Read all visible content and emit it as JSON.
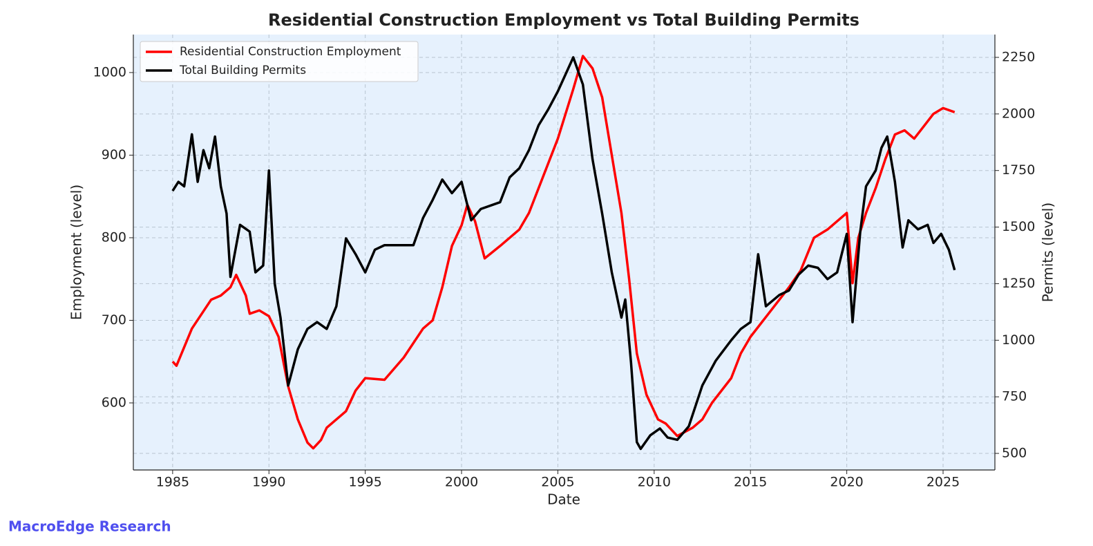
{
  "chart_data": {
    "type": "line",
    "title": "Residential Construction Employment vs Total Building Permits",
    "xlabel": "Date",
    "ylabel": "Employment (level)",
    "y2label": "Permits (level)",
    "watermark": "MacroEdge Research",
    "grid": true,
    "legend": "upper left",
    "xlim": [
      1982.96,
      2027.69
    ],
    "xticks": [
      1985,
      1990,
      1995,
      2000,
      2005,
      2010,
      2015,
      2020,
      2025
    ],
    "ylim": [
      518.8,
      1046
    ],
    "yticks": [
      600,
      700,
      800,
      900,
      1000
    ],
    "y2lim": [
      426.7,
      2350.8
    ],
    "y2ticks": [
      500,
      750,
      1000,
      1250,
      1500,
      1750,
      2000,
      2250
    ],
    "series": [
      {
        "name": "Residential Construction Employment",
        "color": "#ff0000",
        "axis": "y",
        "x": [
          1985,
          1985.2,
          1986,
          1987,
          1987.5,
          1988,
          1988.3,
          1988.8,
          1989,
          1989.5,
          1990,
          1990.5,
          1991,
          1991.5,
          1992,
          1992.3,
          1992.7,
          1993,
          1994,
          1994.5,
          1995,
          1996,
          1997,
          1998,
          1998.5,
          1999,
          1999.5,
          2000,
          2000.3,
          2000.7,
          2001.2,
          2002,
          2003,
          2003.5,
          2004,
          2005,
          2005.8,
          2006.3,
          2006.8,
          2007.3,
          2007.8,
          2008.3,
          2008.7,
          2009.1,
          2009.6,
          2010.2,
          2010.6,
          2011.2,
          2012,
          2012.5,
          2013,
          2014,
          2014.5,
          2015,
          2016,
          2017,
          2017.6,
          2018.3,
          2019,
          2019.5,
          2020,
          2020.3,
          2020.6,
          2021,
          2021.5,
          2022,
          2022.5,
          2023,
          2023.5,
          2024,
          2024.5,
          2025,
          2025.6
        ],
        "values": [
          650,
          645,
          690,
          725,
          730,
          740,
          755,
          730,
          708,
          712,
          705,
          680,
          620,
          580,
          552,
          545,
          555,
          570,
          590,
          615,
          630,
          628,
          655,
          690,
          700,
          740,
          790,
          815,
          840,
          820,
          775,
          790,
          810,
          830,
          860,
          920,
          980,
          1020,
          1005,
          970,
          900,
          830,
          750,
          660,
          610,
          580,
          575,
          560,
          570,
          580,
          600,
          630,
          660,
          680,
          710,
          740,
          760,
          800,
          810,
          820,
          830,
          745,
          800,
          830,
          860,
          895,
          925,
          930,
          920,
          935,
          950,
          957,
          952
        ]
      },
      {
        "name": "Total Building Permits",
        "color": "#000000",
        "axis": "y2",
        "x": [
          1985,
          1985.3,
          1985.6,
          1986,
          1986.3,
          1986.6,
          1986.9,
          1987.2,
          1987.5,
          1987.8,
          1988,
          1988.5,
          1989,
          1989.3,
          1989.7,
          1990,
          1990.3,
          1990.6,
          1991,
          1991.5,
          1992,
          1992.5,
          1993,
          1993.5,
          1994,
          1994.5,
          1995,
          1995.5,
          1996,
          1997,
          1997.5,
          1998,
          1998.5,
          1999,
          1999.5,
          2000,
          2000.5,
          2001,
          2002,
          2002.5,
          2003,
          2003.5,
          2004,
          2004.5,
          2005,
          2005.8,
          2006.3,
          2006.8,
          2007.3,
          2007.8,
          2008.3,
          2008.5,
          2008.8,
          2009.1,
          2009.3,
          2009.8,
          2010.3,
          2010.7,
          2011.2,
          2011.8,
          2012.5,
          2013.2,
          2014,
          2014.5,
          2015,
          2015.4,
          2015.8,
          2016.5,
          2017,
          2017.5,
          2018,
          2018.5,
          2019,
          2019.5,
          2020,
          2020.3,
          2020.7,
          2021,
          2021.5,
          2021.8,
          2022.1,
          2022.5,
          2022.9,
          2023.2,
          2023.7,
          2024.2,
          2024.5,
          2024.9,
          2025.3,
          2025.6
        ],
        "values": [
          1660,
          1700,
          1680,
          1910,
          1700,
          1840,
          1760,
          1900,
          1680,
          1560,
          1280,
          1510,
          1480,
          1300,
          1330,
          1750,
          1250,
          1100,
          800,
          960,
          1050,
          1080,
          1050,
          1150,
          1450,
          1380,
          1300,
          1400,
          1420,
          1420,
          1420,
          1540,
          1620,
          1710,
          1650,
          1700,
          1530,
          1580,
          1610,
          1720,
          1760,
          1840,
          1950,
          2020,
          2100,
          2250,
          2130,
          1800,
          1560,
          1300,
          1100,
          1180,
          900,
          550,
          520,
          580,
          610,
          570,
          560,
          620,
          800,
          910,
          1000,
          1050,
          1080,
          1380,
          1150,
          1200,
          1220,
          1290,
          1330,
          1320,
          1270,
          1300,
          1470,
          1080,
          1480,
          1680,
          1750,
          1850,
          1900,
          1700,
          1410,
          1530,
          1490,
          1510,
          1430,
          1470,
          1400,
          1310
        ]
      }
    ]
  }
}
